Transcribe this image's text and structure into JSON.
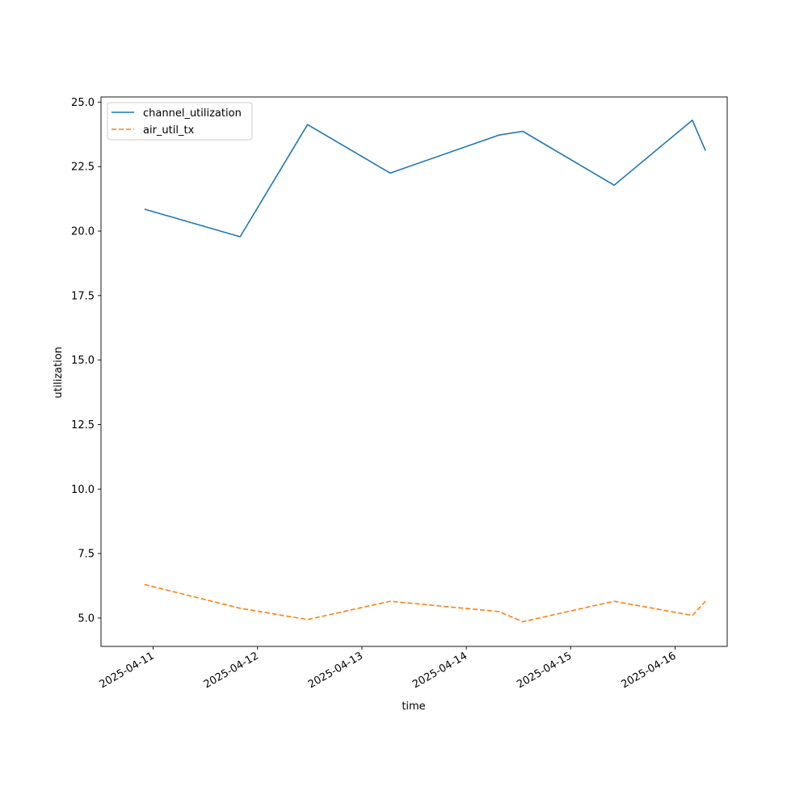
{
  "chart_data": {
    "type": "line",
    "xlabel": "time",
    "ylabel": "utilization",
    "x": [
      "2025-04-10 22:00",
      "2025-04-11 20:00",
      "2025-04-12 11:30",
      "2025-04-13 06:30",
      "2025-04-14 07:30",
      "2025-04-14 13:00",
      "2025-04-15 10:00",
      "2025-04-16 04:00",
      "2025-04-16 07:00"
    ],
    "x_ticks": [
      "2025-04-11",
      "2025-04-12",
      "2025-04-13",
      "2025-04-14",
      "2025-04-15",
      "2025-04-16"
    ],
    "ylim": [
      3.9,
      25.2
    ],
    "y_ticks": [
      5.0,
      7.5,
      10.0,
      12.5,
      15.0,
      17.5,
      20.0,
      22.5,
      25.0
    ],
    "y_tick_labels": [
      "5.0",
      "7.5",
      "10.0",
      "12.5",
      "15.0",
      "17.5",
      "20.0",
      "22.5",
      "25.0"
    ],
    "grid": false,
    "legend_position": "top-left",
    "series": [
      {
        "name": "channel_utilization",
        "color": "#1f77b4",
        "style": "solid",
        "values": [
          20.85,
          19.78,
          24.13,
          22.25,
          23.72,
          23.87,
          21.78,
          24.3,
          23.12
        ]
      },
      {
        "name": "air_util_tx",
        "color": "#ff7f0e",
        "style": "dashed",
        "values": [
          6.3,
          5.38,
          4.94,
          5.65,
          5.25,
          4.86,
          5.65,
          5.1,
          5.65
        ]
      }
    ]
  }
}
